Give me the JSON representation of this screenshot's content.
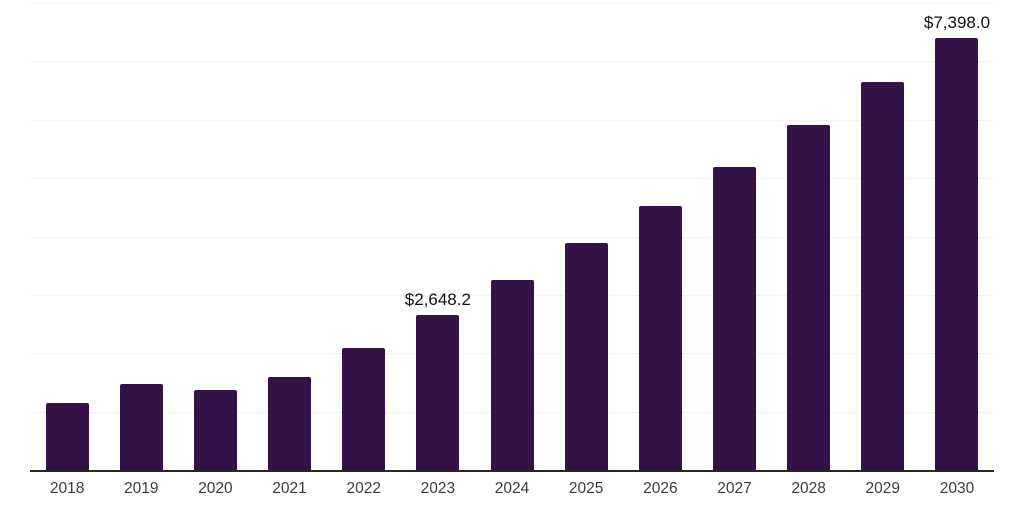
{
  "chart_data": {
    "type": "bar",
    "title": "",
    "xlabel": "",
    "ylabel": "",
    "categories": [
      "2018",
      "2019",
      "2020",
      "2021",
      "2022",
      "2023",
      "2024",
      "2025",
      "2026",
      "2027",
      "2028",
      "2029",
      "2030"
    ],
    "values": [
      1150,
      1470,
      1365,
      1590,
      2090,
      2648.2,
      3255,
      3895,
      4520,
      5190,
      5905,
      6645,
      7398.0
    ],
    "point_labels": {
      "2023": "$2,648.2",
      "2030": "$7,398.0"
    },
    "ylim": [
      0,
      8000
    ],
    "grid": "horizontal",
    "gridline_step": 1000,
    "legend": "none",
    "y_axis_labels_visible": false,
    "bar_color": "#331347",
    "axis_color": "#262626",
    "grid_color": "#f2f2f2",
    "tick_label_color": "#3d3d3d",
    "data_label_color": "#111111",
    "background_color": "#ffffff"
  }
}
